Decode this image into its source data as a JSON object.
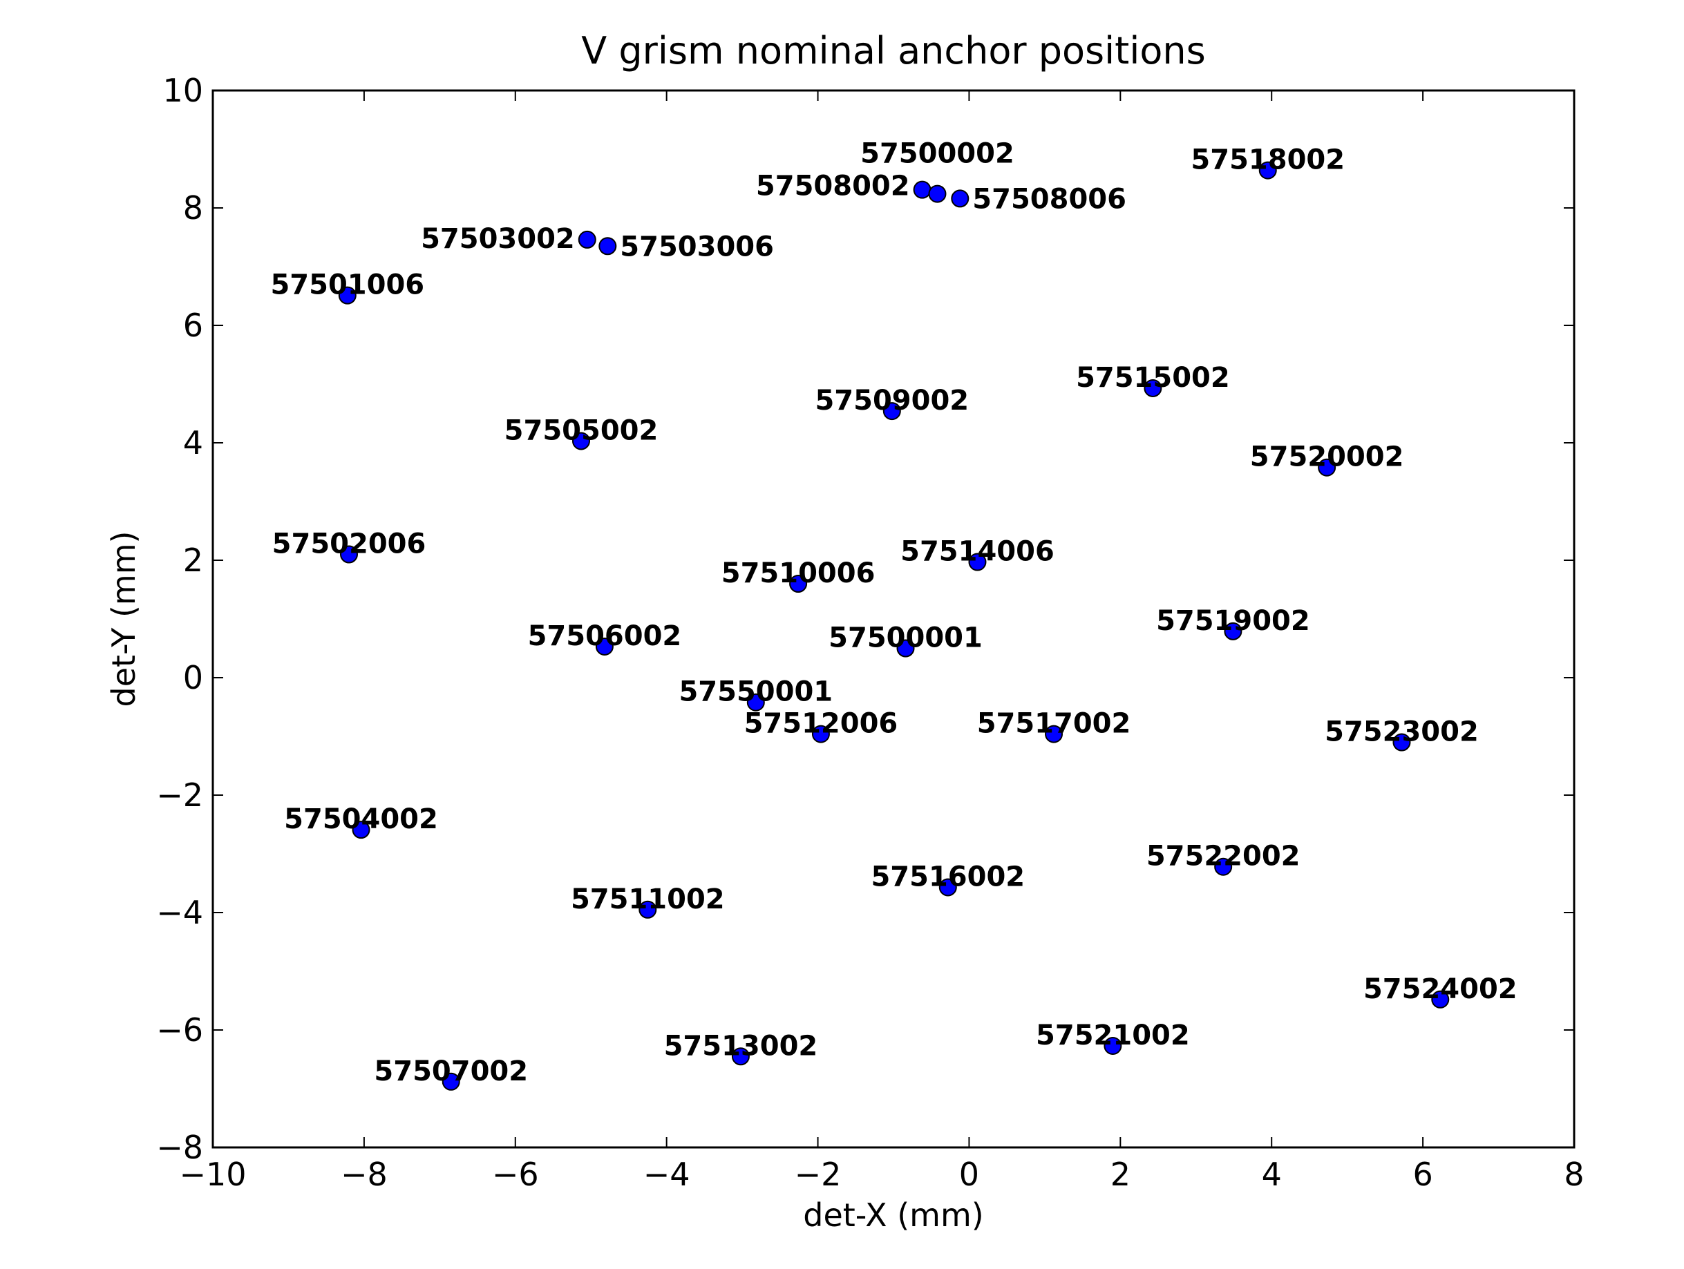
{
  "chart_data": {
    "type": "scatter",
    "title": "V grism nominal anchor positions",
    "xlabel": "det-X (mm)",
    "ylabel": "det-Y (mm)",
    "xlim": [
      -10,
      8
    ],
    "ylim": [
      -8,
      10
    ],
    "xticks": [
      -10,
      -8,
      -6,
      -4,
      -2,
      0,
      2,
      4,
      6,
      8
    ],
    "yticks": [
      -8,
      -6,
      -4,
      -2,
      0,
      2,
      4,
      6,
      8,
      10
    ],
    "xtick_labels": [
      "−10",
      "−8",
      "−6",
      "−4",
      "−2",
      "0",
      "2",
      "4",
      "6",
      "8"
    ],
    "ytick_labels": [
      "−8",
      "−6",
      "−4",
      "−2",
      "0",
      "2",
      "4",
      "6",
      "8",
      "10"
    ],
    "grid": false,
    "marker_color": "#0000ff",
    "points": [
      {
        "label": "57501006",
        "x": -8.22,
        "y": 6.51
      },
      {
        "label": "57503002",
        "x": -5.05,
        "y": 7.46
      },
      {
        "label": "57503006",
        "x": -4.78,
        "y": 7.35
      },
      {
        "label": "57508002",
        "x": -0.62,
        "y": 8.31
      },
      {
        "label": "57500002",
        "x": -0.42,
        "y": 8.24
      },
      {
        "label": "57508006",
        "x": -0.12,
        "y": 8.16
      },
      {
        "label": "57518002",
        "x": 3.95,
        "y": 8.64
      },
      {
        "label": "57515002",
        "x": 2.43,
        "y": 4.93
      },
      {
        "label": "57509002",
        "x": -1.02,
        "y": 4.54
      },
      {
        "label": "57505002",
        "x": -5.13,
        "y": 4.03
      },
      {
        "label": "57520002",
        "x": 4.73,
        "y": 3.58
      },
      {
        "label": "57502006",
        "x": -8.2,
        "y": 2.1
      },
      {
        "label": "57514006",
        "x": 0.11,
        "y": 1.97
      },
      {
        "label": "57510006",
        "x": -2.26,
        "y": 1.6
      },
      {
        "label": "57519002",
        "x": 3.49,
        "y": 0.79
      },
      {
        "label": "57506002",
        "x": -4.82,
        "y": 0.53
      },
      {
        "label": "57500001",
        "x": -0.84,
        "y": 0.5
      },
      {
        "label": "57550001",
        "x": -2.82,
        "y": -0.42
      },
      {
        "label": "57512006",
        "x": -1.96,
        "y": -0.96
      },
      {
        "label": "57517002",
        "x": 1.12,
        "y": -0.96
      },
      {
        "label": "57523002",
        "x": 5.72,
        "y": -1.1
      },
      {
        "label": "57504002",
        "x": -8.04,
        "y": -2.59
      },
      {
        "label": "57522002",
        "x": 3.36,
        "y": -3.22
      },
      {
        "label": "57516002",
        "x": -0.28,
        "y": -3.57
      },
      {
        "label": "57511002",
        "x": -4.25,
        "y": -3.95
      },
      {
        "label": "57524002",
        "x": 6.23,
        "y": -5.48
      },
      {
        "label": "57521002",
        "x": 1.9,
        "y": -6.27
      },
      {
        "label": "57513002",
        "x": -3.02,
        "y": -6.45
      },
      {
        "label": "57507002",
        "x": -6.85,
        "y": -6.88
      }
    ]
  }
}
